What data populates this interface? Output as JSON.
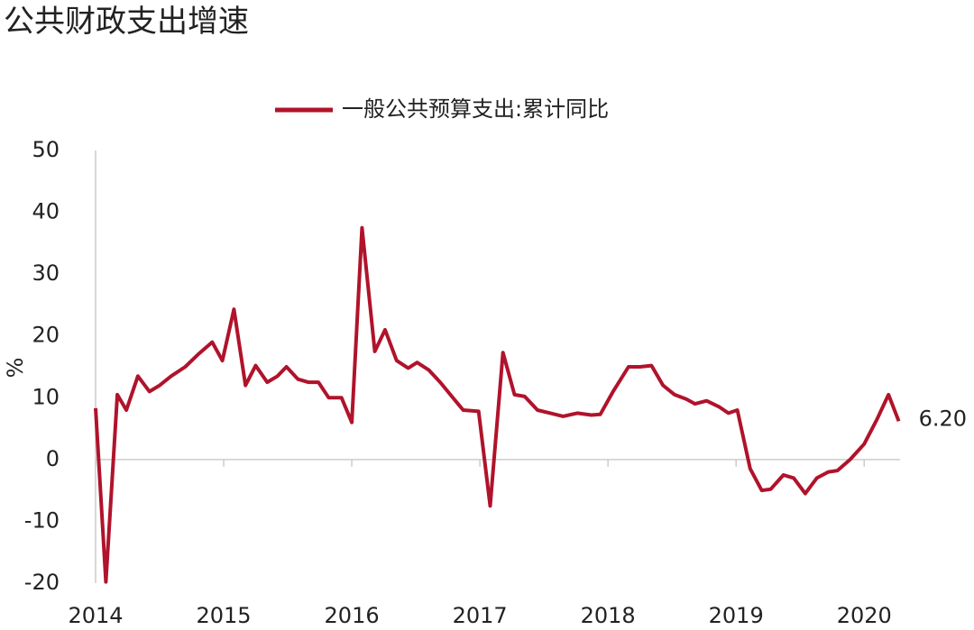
{
  "chart_data": {
    "type": "line",
    "title": "公共财政支出增速",
    "y_label": "%",
    "x": [
      2014.0,
      2014.08,
      2014.17,
      2014.24,
      2014.33,
      2014.42,
      2014.5,
      2014.59,
      2014.7,
      2014.8,
      2014.91,
      2014.99,
      2015.08,
      2015.17,
      2015.25,
      2015.34,
      2015.42,
      2015.49,
      2015.58,
      2015.66,
      2015.74,
      2015.82,
      2015.92,
      2016.0,
      2016.08,
      2016.18,
      2016.26,
      2016.35,
      2016.44,
      2016.51,
      2016.6,
      2016.69,
      2016.77,
      2016.87,
      2016.99,
      2017.08,
      2017.18,
      2017.27,
      2017.35,
      2017.45,
      2017.55,
      2017.65,
      2017.76,
      2017.87,
      2017.94,
      2018.04,
      2018.16,
      2018.25,
      2018.34,
      2018.43,
      2018.52,
      2018.61,
      2018.68,
      2018.77,
      2018.87,
      2018.94,
      2019.01,
      2019.11,
      2019.2,
      2019.27,
      2019.37,
      2019.45,
      2019.54,
      2019.63,
      2019.72,
      2019.79,
      2019.89,
      2020.0,
      2020.1,
      2020.19,
      2020.27
    ],
    "series": [
      {
        "name": "一般公共预算支出:累计同比",
        "color": "#b0132b",
        "values": [
          8.3,
          -19.8,
          10.5,
          8,
          13.5,
          11,
          12,
          13.5,
          15,
          17,
          19,
          16,
          24.3,
          12,
          15.2,
          12.5,
          13.5,
          15,
          13,
          12.5,
          12.5,
          10,
          10,
          6,
          37.5,
          17.5,
          21,
          16,
          14.8,
          15.7,
          14.5,
          12.5,
          10.5,
          8,
          7.8,
          -7.5,
          17.3,
          10.5,
          10.2,
          8,
          7.5,
          7,
          7.5,
          7.2,
          7.3,
          11,
          15,
          15,
          15.2,
          12,
          10.5,
          9.8,
          9,
          9.5,
          8.5,
          7.5,
          8,
          -1.5,
          -5,
          -4.8,
          -2.5,
          -3,
          -5.5,
          -3,
          -2,
          -1.8,
          0,
          2.5,
          6.5,
          10.5,
          6.2
        ],
        "value_labels": [
          null,
          null,
          null,
          null,
          null,
          null,
          null,
          null,
          null,
          null,
          null,
          null,
          null,
          null,
          null,
          null,
          null,
          null,
          null,
          null,
          null,
          null,
          null,
          null,
          null,
          null,
          null,
          null,
          null,
          null,
          null,
          null,
          null,
          null,
          null,
          null,
          null,
          null,
          null,
          null,
          null,
          null,
          null,
          null,
          null,
          null,
          null,
          null,
          null,
          null,
          null,
          null,
          null,
          null,
          null,
          null,
          null,
          null,
          null,
          null,
          null,
          null,
          null,
          null,
          null,
          null,
          null,
          null,
          null,
          null,
          "6.20"
        ]
      }
    ],
    "xlim": [
      2014,
      2020.28
    ],
    "xticks": [
      2014,
      2015,
      2016,
      2017,
      2018,
      2019,
      2020
    ],
    "ylim": [
      -20,
      50
    ],
    "yticks": [
      -20,
      -10,
      0,
      10,
      20,
      30,
      40,
      50
    ],
    "grid": false,
    "legend": "top"
  }
}
